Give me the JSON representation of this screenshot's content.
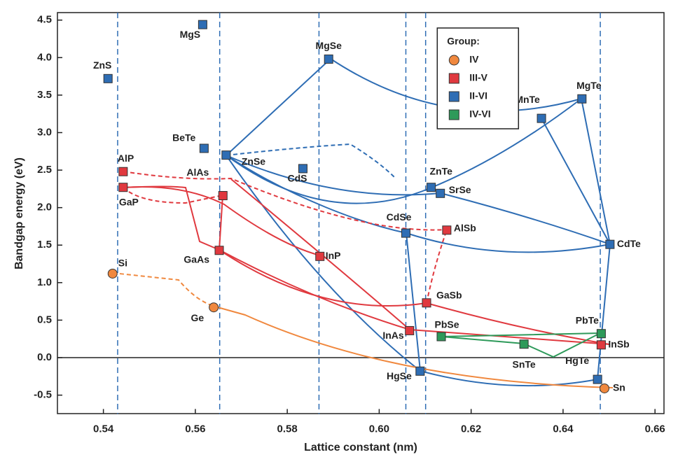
{
  "chart_data": {
    "type": "scatter",
    "xlabel": "Lattice constant (nm)",
    "ylabel": "Bandgap energy (eV)",
    "xlim": [
      0.53,
      0.662
    ],
    "ylim": [
      -0.75,
      4.6
    ],
    "xticks": [
      0.54,
      0.56,
      0.58,
      {
        "value": 0.6,
        "label": "0.60"
      },
      0.62,
      0.64,
      0.66
    ],
    "yticks": [
      {
        "value": -0.5,
        "label": "-0.5"
      },
      {
        "value": 0,
        "label": "0.0"
      },
      0.5,
      {
        "value": 1,
        "label": "1.0"
      },
      1.5,
      {
        "value": 2,
        "label": "2.0"
      },
      2.5,
      {
        "value": 3,
        "label": "3.0"
      },
      3.5,
      {
        "value": 4,
        "label": "4.0"
      },
      4.5
    ],
    "reference_lines": [
      0.5431,
      0.5653,
      0.5869,
      0.6058,
      0.6101,
      0.6481
    ],
    "legend": "upper right",
    "legend_title": "Group:",
    "series": [
      {
        "name": "IV",
        "color": "#f0883e",
        "marker": "circle",
        "labels": [
          "Si",
          "Ge",
          "Sn"
        ],
        "x": [
          0.542,
          0.564,
          0.649
        ],
        "y": [
          1.12,
          0.67,
          -0.41
        ]
      },
      {
        "name": "III-V",
        "color": "#e0393f",
        "marker": "square",
        "labels": [
          "AlP",
          "GaP",
          "AlAs",
          "GaAs",
          "InP",
          "AlSb",
          "GaSb",
          "InAs",
          "InSb"
        ],
        "x": [
          0.5443,
          0.5443,
          0.566,
          0.5652,
          0.5871,
          0.6147,
          0.6103,
          0.6066,
          0.6483
        ],
        "y": [
          2.48,
          2.27,
          2.16,
          1.43,
          1.35,
          1.7,
          0.73,
          0.36,
          0.17
        ]
      },
      {
        "name": "II-VI",
        "color": "#2e6db4",
        "marker": "square",
        "labels": [
          "ZnS",
          "MgS",
          "MgSe",
          "BeTe",
          "ZnSe",
          "CdS",
          "CdSe",
          "ZnTe",
          "SrSe",
          "MnTe",
          "MgTe",
          "CdTe",
          "HgSe",
          "HgTe"
        ],
        "x": [
          0.541,
          0.5616,
          0.589,
          0.5619,
          0.5667,
          0.5834,
          0.6058,
          0.6113,
          0.6133,
          0.6353,
          0.6441,
          0.6502,
          0.6089,
          0.6475
        ],
        "y": [
          3.72,
          4.44,
          3.98,
          2.79,
          2.7,
          2.52,
          1.66,
          2.27,
          2.19,
          3.19,
          3.45,
          1.51,
          -0.18,
          -0.29
        ]
      },
      {
        "name": "IV-VI",
        "color": "#2e9a5a",
        "marker": "square",
        "labels": [
          "PbSe",
          "SnTe",
          "PbTe"
        ],
        "x": [
          0.6135,
          0.6315,
          0.6483
        ],
        "y": [
          0.28,
          0.18,
          0.32
        ]
      }
    ]
  }
}
